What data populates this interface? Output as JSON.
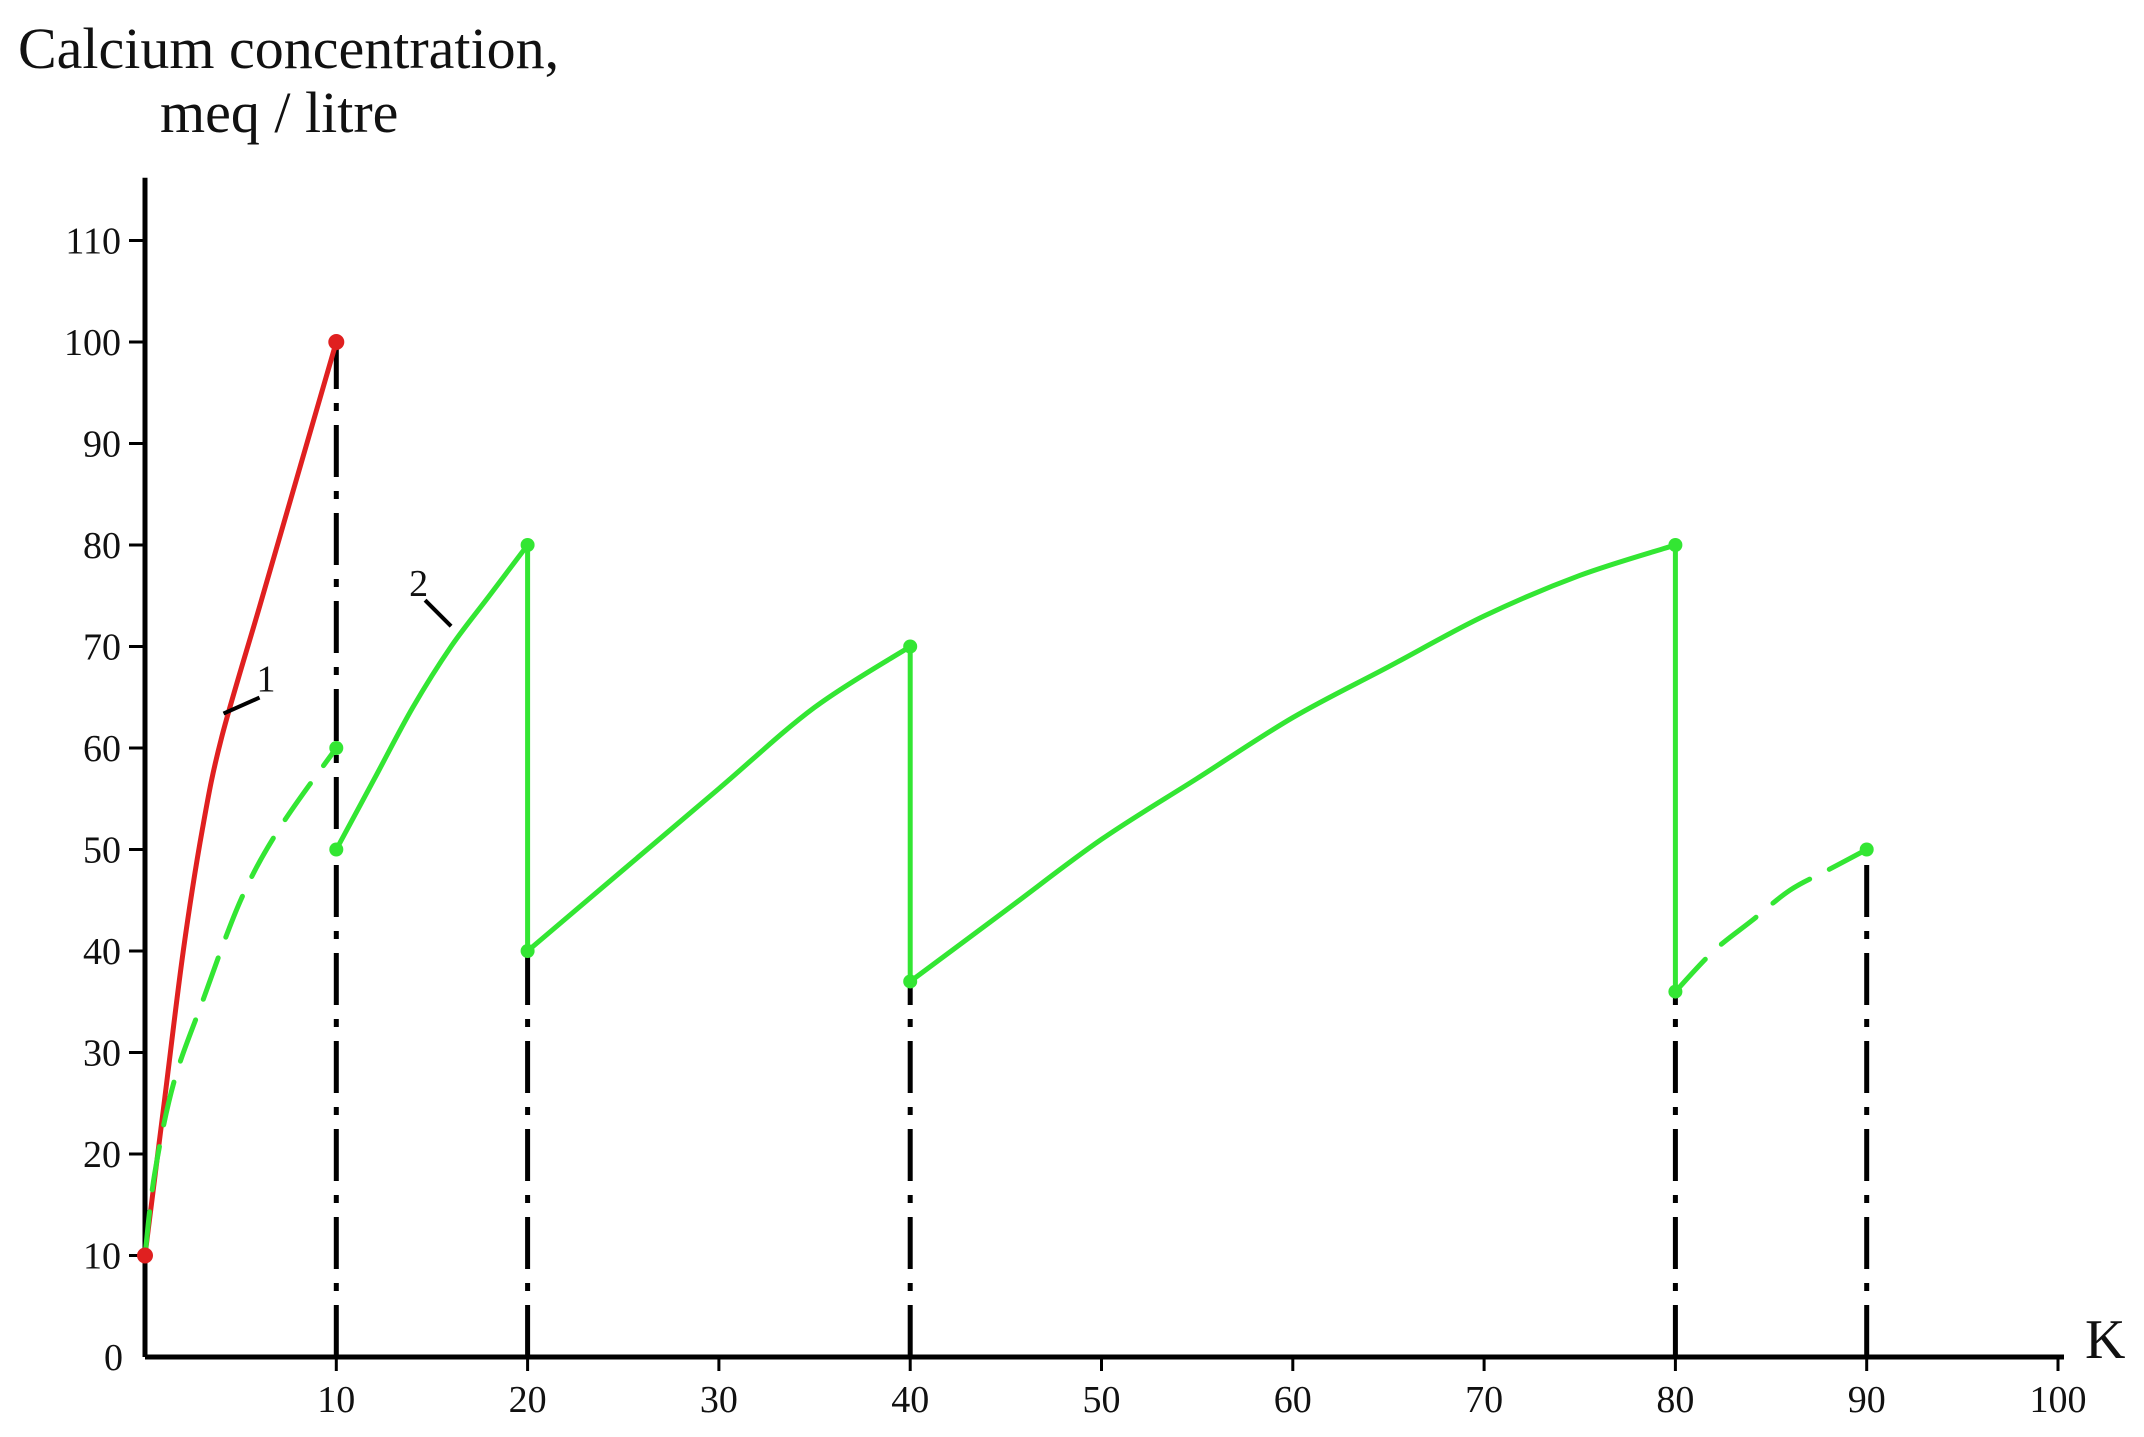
{
  "chart_data": {
    "type": "line",
    "ylabel_line1": "Calcium concentration,",
    "ylabel_line2": "meq / litre",
    "xlabel": "K",
    "xlim": [
      0,
      100
    ],
    "ylim": [
      0,
      115
    ],
    "x_ticks": [
      10,
      20,
      30,
      40,
      50,
      60,
      70,
      80,
      90,
      100
    ],
    "x_tick_labels": [
      "10",
      "20",
      "30",
      "40",
      "50",
      "60",
      "70",
      "80",
      "90",
      "100"
    ],
    "y_ticks": [
      0,
      10,
      20,
      30,
      40,
      50,
      60,
      70,
      80,
      90,
      100,
      110
    ],
    "y_tick_labels": [
      "0",
      "10",
      "20",
      "30",
      "40",
      "50",
      "60",
      "70",
      "80",
      "90",
      "100",
      "110"
    ],
    "grid": false,
    "colors": {
      "curve1": "#e02020",
      "curve2": "#33e633",
      "axis": "#000000"
    },
    "series": [
      {
        "name": "1",
        "color": "#e02020",
        "style": "solid",
        "points": [
          [
            0,
            10
          ],
          [
            1,
            25
          ],
          [
            2,
            40
          ],
          [
            3,
            52
          ],
          [
            4,
            61
          ],
          [
            6,
            74
          ],
          [
            8,
            87
          ],
          [
            10,
            100
          ]
        ]
      },
      {
        "name": "2",
        "color": "#33e633",
        "style": "segments",
        "segments": [
          {
            "style": "dashed",
            "points": [
              [
                0,
                10
              ],
              [
                0.5,
                18
              ],
              [
                1.5,
                27
              ],
              [
                3,
                35
              ],
              [
                5,
                45
              ],
              [
                7,
                52
              ],
              [
                10,
                60
              ]
            ]
          },
          {
            "style": "solid",
            "points": [
              [
                10,
                50
              ],
              [
                12,
                57
              ],
              [
                14,
                64
              ],
              [
                16,
                70
              ],
              [
                18,
                75
              ],
              [
                20,
                80
              ]
            ]
          },
          {
            "style": "solid",
            "points": [
              [
                20,
                80
              ],
              [
                20,
                40
              ]
            ]
          },
          {
            "style": "solid",
            "points": [
              [
                20,
                40
              ],
              [
                25,
                48
              ],
              [
                30,
                56
              ],
              [
                35,
                64
              ],
              [
                40,
                70
              ]
            ]
          },
          {
            "style": "solid",
            "points": [
              [
                40,
                70
              ],
              [
                40,
                37
              ]
            ]
          },
          {
            "style": "solid",
            "points": [
              [
                40,
                37
              ],
              [
                45,
                44
              ],
              [
                50,
                51
              ],
              [
                55,
                57
              ],
              [
                60,
                63
              ],
              [
                65,
                68
              ],
              [
                70,
                73
              ],
              [
                75,
                77
              ],
              [
                80,
                80
              ]
            ]
          },
          {
            "style": "solid",
            "points": [
              [
                80,
                80
              ],
              [
                80,
                36
              ]
            ]
          },
          {
            "style": "dashed",
            "points": [
              [
                80,
                36
              ],
              [
                82,
                40
              ],
              [
                84,
                43
              ],
              [
                86,
                46
              ],
              [
                88,
                48
              ],
              [
                90,
                50
              ]
            ]
          }
        ],
        "markers": [
          [
            0,
            10
          ],
          [
            10,
            60
          ],
          [
            10,
            50
          ],
          [
            20,
            80
          ],
          [
            20,
            40
          ],
          [
            40,
            70
          ],
          [
            40,
            37
          ],
          [
            80,
            80
          ],
          [
            80,
            36
          ],
          [
            90,
            50
          ]
        ]
      }
    ],
    "red_markers": [
      [
        0,
        10
      ],
      [
        10,
        100
      ]
    ],
    "vertical_lines": [
      {
        "x": 10,
        "y_top": 100
      },
      {
        "x": 20,
        "y_top": 40
      },
      {
        "x": 40,
        "y_top": 37
      },
      {
        "x": 80,
        "y_top": 36
      },
      {
        "x": 90,
        "y_top": 50
      }
    ],
    "annotations": [
      {
        "text": "1",
        "target": [
          4,
          63
        ]
      },
      {
        "text": "2",
        "target": [
          16,
          72
        ]
      }
    ]
  }
}
